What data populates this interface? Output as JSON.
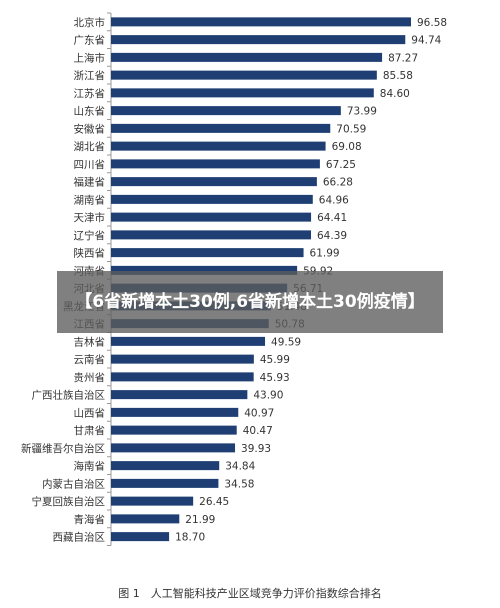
{
  "overlay_title": "【6省新增本土30例,6省新增本土30例疫情】",
  "caption": "图 1　人工智能科技产业区域竞争力评价指数综合排名",
  "colors": {
    "bar": "#1f3f74",
    "axis": "#999999",
    "label": "#333333"
  },
  "chart_data": {
    "type": "bar",
    "orientation": "horizontal",
    "title": "",
    "xlabel": "",
    "ylabel": "",
    "xlim": [
      0,
      100
    ],
    "grid": false,
    "categories": [
      "北京市",
      "广东省",
      "上海市",
      "浙江省",
      "江苏省",
      "山东省",
      "安徽省",
      "湖北省",
      "四川省",
      "福建省",
      "湖南省",
      "天津市",
      "辽宁省",
      "陕西省",
      "河南省",
      "河北省",
      "黑龙江省",
      "江西省",
      "吉林省",
      "云南省",
      "贵州省",
      "广西壮族自治区",
      "山西省",
      "甘肃省",
      "新疆维吾尔自治区",
      "海南省",
      "内蒙古自治区",
      "宁夏回族自治区",
      "青海省",
      "西藏自治区"
    ],
    "values": [
      96.58,
      94.74,
      87.27,
      85.58,
      84.6,
      73.99,
      70.59,
      69.08,
      67.25,
      66.28,
      64.96,
      64.41,
      64.39,
      61.99,
      59.92,
      56.71,
      51.48,
      50.78,
      49.59,
      45.99,
      45.93,
      43.9,
      40.97,
      40.47,
      39.93,
      34.84,
      34.58,
      26.45,
      21.99,
      18.7
    ],
    "value_labels": [
      "96.58",
      "94.74",
      "87.27",
      "85.58",
      "84.60",
      "73.99",
      "70.59",
      "69.08",
      "67.25",
      "66.28",
      "64.96",
      "64.41",
      "64.39",
      "61.99",
      "59.92",
      "56.71",
      "51.48",
      "50.78",
      "49.59",
      "45.99",
      "45.93",
      "43.90",
      "40.97",
      "40.47",
      "39.93",
      "34.84",
      "34.58",
      "26.45",
      "21.99",
      "18.70"
    ]
  }
}
